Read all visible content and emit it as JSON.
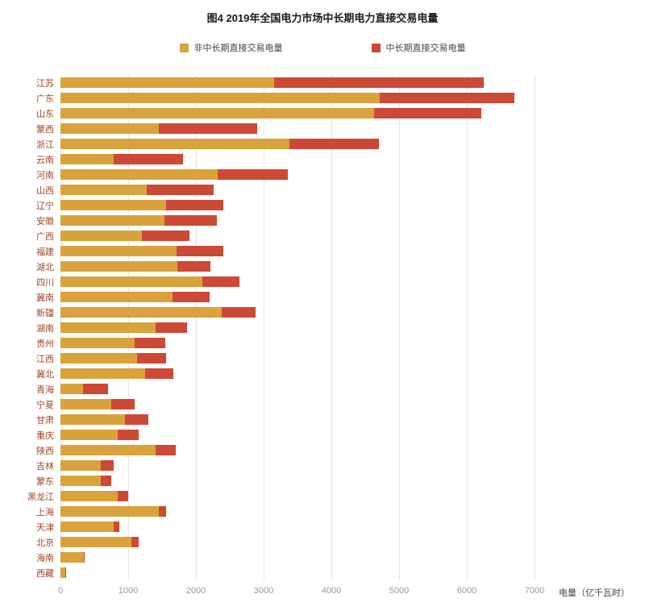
{
  "chart_data": {
    "type": "bar",
    "orientation": "horizontal",
    "stacked": true,
    "title": "图4 2019年全国电力市场中长期电力直接交易电量",
    "xlabel": "电量（亿千瓦时）",
    "xlim": [
      0,
      7000
    ],
    "xticks": [
      0,
      1000,
      2000,
      3000,
      4000,
      5000,
      6000,
      7000
    ],
    "grid": true,
    "legend_position": "top",
    "categories": [
      "江苏",
      "广东",
      "山东",
      "蒙西",
      "浙江",
      "云南",
      "河南",
      "山西",
      "辽宁",
      "安徽",
      "广西",
      "福建",
      "湖北",
      "四川",
      "冀南",
      "新疆",
      "湖南",
      "贵州",
      "江西",
      "冀北",
      "青海",
      "宁夏",
      "甘肃",
      "重庆",
      "陕西",
      "吉林",
      "蒙东",
      "黑龙江",
      "上海",
      "天津",
      "北京",
      "海南",
      "西藏"
    ],
    "series": [
      {
        "name": "非中长期直接交易电量",
        "color": "#d9a23c",
        "values": [
          3150,
          4720,
          4630,
          1450,
          3380,
          780,
          2320,
          1270,
          1560,
          1530,
          1200,
          1720,
          1730,
          2090,
          1650,
          2380,
          1400,
          1100,
          1130,
          1250,
          330,
          750,
          950,
          850,
          1400,
          600,
          600,
          850,
          1450,
          780,
          1050,
          350,
          75
        ]
      },
      {
        "name": "中长期直接交易电量",
        "color": "#cc4936",
        "values": [
          3100,
          1980,
          1590,
          1460,
          1320,
          1030,
          1040,
          990,
          850,
          780,
          710,
          690,
          490,
          550,
          550,
          500,
          470,
          450,
          430,
          420,
          370,
          350,
          350,
          300,
          300,
          180,
          150,
          150,
          110,
          90,
          110,
          10,
          5
        ]
      }
    ]
  }
}
